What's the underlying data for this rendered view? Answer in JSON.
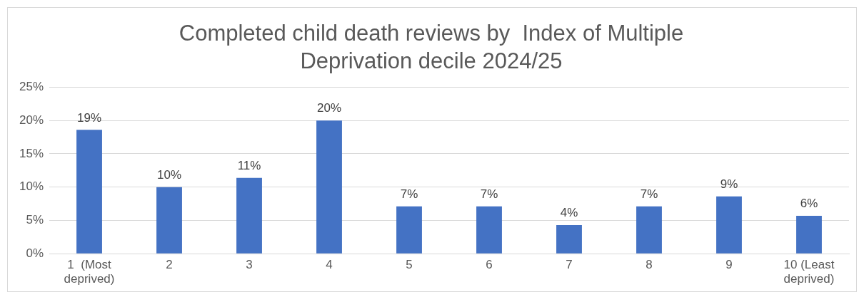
{
  "chart_data": {
    "type": "bar",
    "title": "Completed child death reviews by  Index of Multiple Deprivation decile 2024/25",
    "categories": [
      "1  (Most deprived)",
      "2",
      "3",
      "4",
      "5",
      "6",
      "7",
      "8",
      "9",
      "10 (Least deprived)"
    ],
    "values": [
      18.6,
      10.0,
      11.4,
      20.0,
      7.1,
      7.1,
      4.3,
      7.1,
      8.6,
      5.7
    ],
    "value_labels": [
      "19%",
      "10%",
      "11%",
      "20%",
      "7%",
      "7%",
      "4%",
      "7%",
      "9%",
      "6%"
    ],
    "color": "#4472c4",
    "ylim": [
      0,
      25
    ],
    "yticks": [
      {
        "value": 0,
        "label": "0%"
      },
      {
        "value": 5,
        "label": "5%"
      },
      {
        "value": 10,
        "label": "10%"
      },
      {
        "value": 15,
        "label": "15%"
      },
      {
        "value": 20,
        "label": "20%"
      },
      {
        "value": 25,
        "label": "25%"
      }
    ],
    "grid": "y",
    "legend": false
  }
}
